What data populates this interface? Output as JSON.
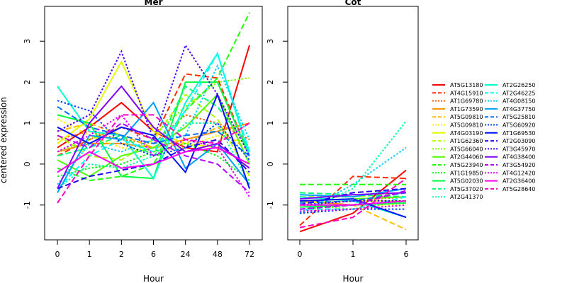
{
  "ylabel": "centered expression",
  "charts_common": {
    "yticks": [
      -1,
      0,
      1,
      2,
      3
    ],
    "ylim": [
      -1.85,
      3.85
    ]
  },
  "chart_data": [
    {
      "type": "line",
      "title": "Mer",
      "xlabel": "Hour",
      "categories": [
        "0",
        "1",
        "2",
        "6",
        "24",
        "48",
        "72"
      ],
      "ylim": [
        -1.85,
        3.85
      ],
      "series": [
        {
          "name": "AT5G13180",
          "values": [
            0.4,
            0.9,
            1.5,
            0.8,
            0.4,
            0.3,
            2.9
          ]
        },
        {
          "name": "AT4G15910",
          "values": [
            0.2,
            0.6,
            0.9,
            0.6,
            2.2,
            2.1,
            0.2
          ]
        },
        {
          "name": "AT1G69780",
          "values": [
            0.6,
            0.8,
            0.6,
            0.5,
            1.2,
            1.0,
            0.6
          ]
        },
        {
          "name": "AT1G73590",
          "values": [
            0.3,
            0.5,
            0.5,
            0.4,
            0.6,
            0.8,
            1.0
          ]
        },
        {
          "name": "AT5G09810",
          "values": [
            0.8,
            1.0,
            0.7,
            0.4,
            0.5,
            0.9,
            0.3
          ]
        },
        {
          "name": "AT5G09810",
          "values": [
            1.1,
            0.7,
            0.4,
            0.3,
            0.4,
            0.7,
            0.5
          ]
        },
        {
          "name": "AT4G03190",
          "values": [
            0.5,
            1.1,
            2.5,
            0.8,
            0.5,
            0.4,
            0.0
          ]
        },
        {
          "name": "AT1G62360",
          "values": [
            0.7,
            0.2,
            0.1,
            0.6,
            1.7,
            1.1,
            -0.3
          ]
        },
        {
          "name": "AT5G66040",
          "values": [
            0.3,
            0.6,
            0.9,
            0.7,
            1.4,
            2.0,
            2.1
          ]
        },
        {
          "name": "AT2G44060",
          "values": [
            0.1,
            -0.3,
            0.2,
            0.4,
            0.9,
            1.7,
            0.0
          ]
        },
        {
          "name": "AT5G23940",
          "values": [
            -0.1,
            -0.4,
            -0.3,
            0.0,
            1.3,
            2.1,
            3.7
          ]
        },
        {
          "name": "AT1G19850",
          "values": [
            -0.3,
            -0.1,
            0.0,
            0.3,
            0.5,
            0.2,
            -0.4
          ]
        },
        {
          "name": "AT5G02030",
          "values": [
            1.2,
            1.0,
            -0.3,
            -0.35,
            2.0,
            2.0,
            0.2
          ]
        },
        {
          "name": "AT5G37020",
          "values": [
            0.2,
            0.4,
            0.7,
            0.2,
            1.9,
            1.4,
            0.4
          ]
        },
        {
          "name": "AT2G41370",
          "values": [
            -0.6,
            0.0,
            -0.1,
            0.2,
            1.0,
            1.0,
            -0.5
          ]
        },
        {
          "name": "AT2G26250",
          "values": [
            1.9,
            0.8,
            0.7,
            -0.35,
            1.5,
            2.7,
            0.2
          ]
        },
        {
          "name": "AT2G46225",
          "values": [
            -0.6,
            0.2,
            0.6,
            0.3,
            1.3,
            2.7,
            0.3
          ]
        },
        {
          "name": "AT4G08150",
          "values": [
            -0.5,
            0.5,
            0.3,
            0.6,
            0.7,
            2.4,
            0.6
          ]
        },
        {
          "name": "AT4G37750",
          "values": [
            -0.7,
            0.7,
            0.6,
            1.5,
            -0.1,
            0.5,
            -0.5
          ]
        },
        {
          "name": "AT5G25810",
          "values": [
            1.4,
            0.9,
            0.7,
            0.5,
            0.7,
            0.8,
            0.2
          ]
        },
        {
          "name": "AT5G60920",
          "values": [
            1.55,
            1.3,
            0.5,
            0.2,
            0.4,
            1.0,
            0.1
          ]
        },
        {
          "name": "AT1G69530",
          "values": [
            0.9,
            0.5,
            0.9,
            0.7,
            -0.2,
            1.7,
            -0.6
          ]
        },
        {
          "name": "AT2G03090",
          "values": [
            -0.6,
            -0.3,
            -0.15,
            0.0,
            0.4,
            0.6,
            -0.2
          ]
        },
        {
          "name": "AT3G45970",
          "values": [
            0.8,
            1.2,
            2.75,
            0.6,
            2.9,
            1.7,
            0.2
          ]
        },
        {
          "name": "AT4G38400",
          "values": [
            -0.6,
            1.0,
            1.9,
            0.9,
            0.3,
            0.5,
            -0.1
          ]
        },
        {
          "name": "AT3G54920",
          "values": [
            0.7,
            0.4,
            1.0,
            0.6,
            0.2,
            0.0,
            -0.7
          ]
        },
        {
          "name": "AT4G12420",
          "values": [
            0.3,
            0.7,
            1.2,
            0.2,
            0.6,
            0.4,
            -0.8
          ]
        },
        {
          "name": "AT2G36400",
          "values": [
            -0.2,
            0.3,
            -0.1,
            0.0,
            0.3,
            0.4,
            0.0
          ]
        },
        {
          "name": "AT5G28640",
          "values": [
            -0.95,
            0.2,
            1.2,
            1.2,
            0.6,
            0.5,
            1.0
          ]
        }
      ]
    },
    {
      "type": "line",
      "title": "Cot",
      "xlabel": "Hour",
      "categories": [
        "0",
        "1",
        "6"
      ],
      "ylim": [
        -1.85,
        3.85
      ],
      "series": [
        {
          "name": "AT5G13180",
          "values": [
            -1.65,
            -1.2,
            -0.15
          ]
        },
        {
          "name": "AT4G15910",
          "values": [
            -1.5,
            -0.3,
            -0.35
          ]
        },
        {
          "name": "AT1G69780",
          "values": [
            -1.0,
            -0.9,
            -0.8
          ]
        },
        {
          "name": "AT1G73590",
          "values": [
            -0.9,
            -1.0,
            -0.9
          ]
        },
        {
          "name": "AT5G09810",
          "values": [
            -1.0,
            -1.0,
            -1.6
          ]
        },
        {
          "name": "AT5G09810",
          "values": [
            -1.1,
            -1.0,
            -1.0
          ]
        },
        {
          "name": "AT4G03190",
          "values": [
            -0.95,
            -0.9,
            -0.9
          ]
        },
        {
          "name": "AT1G62360",
          "values": [
            -0.8,
            -0.8,
            -0.7
          ]
        },
        {
          "name": "AT5G66040",
          "values": [
            -1.0,
            -1.1,
            -0.9
          ]
        },
        {
          "name": "AT2G44060",
          "values": [
            -0.9,
            -0.85,
            -0.8
          ]
        },
        {
          "name": "AT5G23940",
          "values": [
            -0.5,
            -0.5,
            -0.5
          ]
        },
        {
          "name": "AT1G19850",
          "values": [
            -1.1,
            -1.0,
            -0.9
          ]
        },
        {
          "name": "AT5G02030",
          "values": [
            -1.05,
            -1.0,
            -0.95
          ]
        },
        {
          "name": "AT5G37020",
          "values": [
            -0.7,
            -0.75,
            -0.8
          ]
        },
        {
          "name": "AT2G41370",
          "values": [
            -1.2,
            -0.6,
            1.05
          ]
        },
        {
          "name": "AT2G26250",
          "values": [
            -0.8,
            -0.9,
            -1.3
          ]
        },
        {
          "name": "AT2G46225",
          "values": [
            -1.1,
            -1.1,
            -0.8
          ]
        },
        {
          "name": "AT4G08150",
          "values": [
            -1.2,
            -0.5,
            0.4
          ]
        },
        {
          "name": "AT4G37750",
          "values": [
            -0.75,
            -0.8,
            -0.6
          ]
        },
        {
          "name": "AT5G25810",
          "values": [
            -0.95,
            -0.9,
            -0.7
          ]
        },
        {
          "name": "AT5G60920",
          "values": [
            -1.2,
            -1.1,
            -1.1
          ]
        },
        {
          "name": "AT1G69530",
          "values": [
            -0.9,
            -0.85,
            -1.3
          ]
        },
        {
          "name": "AT2G03090",
          "values": [
            -1.0,
            -0.7,
            -0.6
          ]
        },
        {
          "name": "AT3G45970",
          "values": [
            -1.0,
            -0.9,
            -0.9
          ]
        },
        {
          "name": "AT4G38400",
          "values": [
            -0.85,
            -0.75,
            -0.7
          ]
        },
        {
          "name": "AT3G54920",
          "values": [
            -1.1,
            -1.0,
            -0.65
          ]
        },
        {
          "name": "AT4G12420",
          "values": [
            -1.15,
            -1.1,
            -1.0
          ]
        },
        {
          "name": "AT2G36400",
          "values": [
            -1.0,
            -1.0,
            -0.9
          ]
        },
        {
          "name": "AT5G28640",
          "values": [
            -1.55,
            -1.3,
            -0.35
          ]
        }
      ]
    }
  ],
  "legend": {
    "placement": "right",
    "items": [
      {
        "label": "AT5G13180",
        "color": "#ff0000",
        "dash": "solid"
      },
      {
        "label": "AT4G15910",
        "color": "#ff2f00",
        "dash": "dashed"
      },
      {
        "label": "AT1G69780",
        "color": "#ff6000",
        "dash": "dotted"
      },
      {
        "label": "AT1G73590",
        "color": "#ff9000",
        "dash": "solid"
      },
      {
        "label": "AT5G09810",
        "color": "#ffbf00",
        "dash": "dashed"
      },
      {
        "label": "AT5G09810",
        "color": "#ffef00",
        "dash": "dotted"
      },
      {
        "label": "AT4G03190",
        "color": "#dfff00",
        "dash": "solid"
      },
      {
        "label": "AT1G62360",
        "color": "#afff00",
        "dash": "dashed"
      },
      {
        "label": "AT5G66040",
        "color": "#80ff00",
        "dash": "dotted"
      },
      {
        "label": "AT2G44060",
        "color": "#50ff00",
        "dash": "solid"
      },
      {
        "label": "AT5G23940",
        "color": "#20ff00",
        "dash": "dashed"
      },
      {
        "label": "AT1G19850",
        "color": "#00ff10",
        "dash": "dotted"
      },
      {
        "label": "AT5G02030",
        "color": "#00ff40",
        "dash": "solid"
      },
      {
        "label": "AT5G37020",
        "color": "#00ff70",
        "dash": "dashed"
      },
      {
        "label": "AT2G41370",
        "color": "#00ff9f",
        "dash": "dotted"
      },
      {
        "label": "AT2G26250",
        "color": "#00ffcf",
        "dash": "solid"
      },
      {
        "label": "AT2G46225",
        "color": "#00ffff",
        "dash": "dashed"
      },
      {
        "label": "AT4G08150",
        "color": "#00cfff",
        "dash": "dotted"
      },
      {
        "label": "AT4G37750",
        "color": "#009fff",
        "dash": "solid"
      },
      {
        "label": "AT5G25810",
        "color": "#0070ff",
        "dash": "dashed"
      },
      {
        "label": "AT5G60920",
        "color": "#0040ff",
        "dash": "dotted"
      },
      {
        "label": "AT1G69530",
        "color": "#0010ff",
        "dash": "solid"
      },
      {
        "label": "AT2G03090",
        "color": "#2000ff",
        "dash": "dashed"
      },
      {
        "label": "AT3G45970",
        "color": "#5000ff",
        "dash": "dotted"
      },
      {
        "label": "AT4G38400",
        "color": "#8000ff",
        "dash": "solid"
      },
      {
        "label": "AT3G54920",
        "color": "#af00ff",
        "dash": "dashed"
      },
      {
        "label": "AT4G12420",
        "color": "#df00ff",
        "dash": "dotted"
      },
      {
        "label": "AT2G36400",
        "color": "#ff00ef",
        "dash": "solid"
      },
      {
        "label": "AT5G28640",
        "color": "#ff00bf",
        "dash": "dashed"
      }
    ]
  }
}
